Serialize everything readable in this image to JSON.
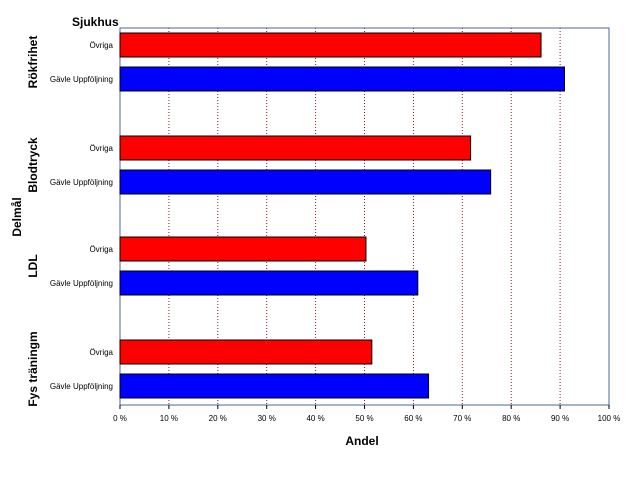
{
  "chart_data": {
    "type": "bar",
    "orientation": "horizontal",
    "legend_title": "Sjukhus",
    "xlabel": "Andel",
    "ylabel": "Delmål",
    "xlim": [
      0,
      100
    ],
    "x_ticks": [
      "0 %",
      "10 %",
      "20 %",
      "30 %",
      "40 %",
      "50 %",
      "60 %",
      "70 %",
      "80 %",
      "90 %",
      "100 %"
    ],
    "grid": "vertical dotted",
    "groups": [
      {
        "label": "Rökfrihet",
        "bars": [
          {
            "name": "Övriga",
            "value": 86.1,
            "color": "#ff0000"
          },
          {
            "name": "Gävle Uppföljning",
            "value": 90.9,
            "color": "#0000ff"
          }
        ]
      },
      {
        "label": "Blodtryck",
        "bars": [
          {
            "name": "Övriga",
            "value": 71.7,
            "color": "#ff0000"
          },
          {
            "name": "Gävle Uppföljning",
            "value": 75.8,
            "color": "#0000ff"
          }
        ]
      },
      {
        "label": "LDL",
        "bars": [
          {
            "name": "Övriga",
            "value": 50.3,
            "color": "#ff0000"
          },
          {
            "name": "Gävle Uppföljning",
            "value": 60.9,
            "color": "#0000ff"
          }
        ]
      },
      {
        "label": "Fys träningm",
        "bars": [
          {
            "name": "Övriga",
            "value": 51.5,
            "color": "#ff0000"
          },
          {
            "name": "Gävle Uppföljning",
            "value": 63.1,
            "color": "#0000ff"
          }
        ]
      }
    ],
    "colors": {
      "grid": "#8b1a1a",
      "frame": "#4a6a9a"
    }
  }
}
